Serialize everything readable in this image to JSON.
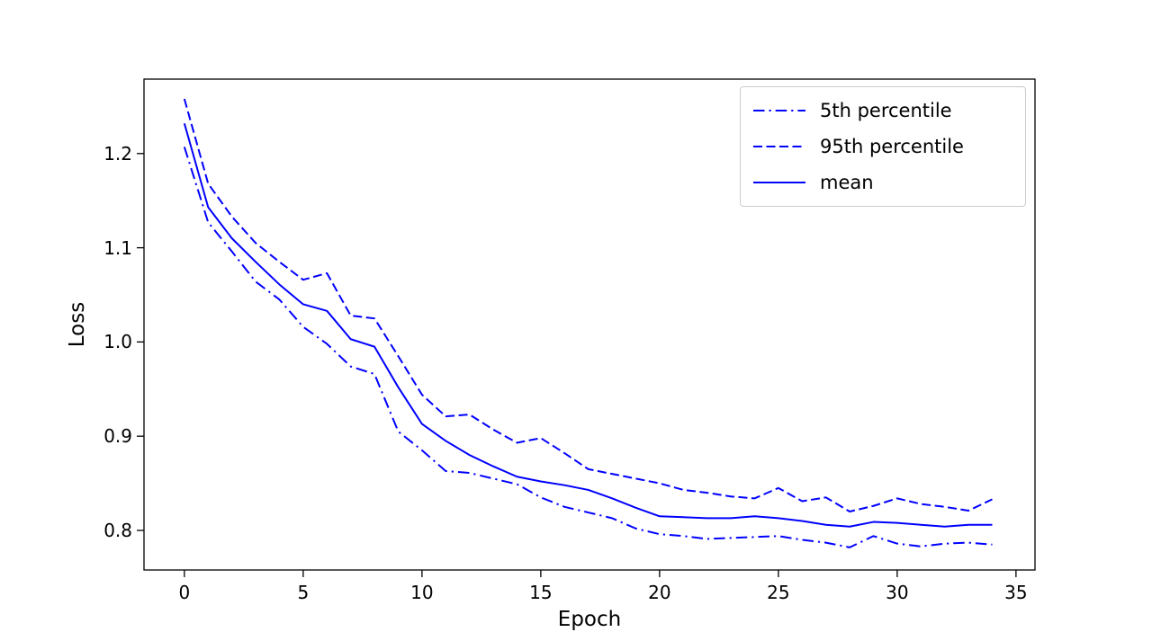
{
  "chart_data": {
    "type": "line",
    "title": "",
    "xlabel": "Epoch",
    "ylabel": "Loss",
    "grid": false,
    "legend_position": "upper right",
    "line_color": "#0000ff",
    "legend_border_color": "#cccccc",
    "xlim": [
      -1.7,
      35.8
    ],
    "ylim": [
      0.758,
      1.279
    ],
    "xtick_values": [
      0,
      5,
      10,
      15,
      20,
      25,
      30,
      35
    ],
    "xtick_labels": [
      "0",
      "5",
      "10",
      "15",
      "20",
      "25",
      "30",
      "35"
    ],
    "ytick_values": [
      0.8,
      0.9,
      1.0,
      1.1,
      1.2
    ],
    "ytick_labels": [
      "0.8",
      "0.9",
      "1.0",
      "1.1",
      "1.2"
    ],
    "x": [
      0,
      1,
      2,
      3,
      4,
      5,
      6,
      7,
      8,
      9,
      10,
      11,
      12,
      13,
      14,
      15,
      16,
      17,
      18,
      19,
      20,
      21,
      22,
      23,
      24,
      25,
      26,
      27,
      28,
      29,
      30,
      31,
      32,
      33,
      34
    ],
    "series": [
      {
        "name": "5th percentile",
        "style": "dashdot",
        "values": [
          1.207,
          1.127,
          1.096,
          1.064,
          1.045,
          1.016,
          0.998,
          0.974,
          0.966,
          0.905,
          0.885,
          0.863,
          0.861,
          0.855,
          0.849,
          0.835,
          0.825,
          0.819,
          0.813,
          0.802,
          0.796,
          0.794,
          0.791,
          0.792,
          0.793,
          0.794,
          0.79,
          0.787,
          0.782,
          0.794,
          0.786,
          0.783,
          0.786,
          0.787,
          0.785
        ]
      },
      {
        "name": "95th percentile",
        "style": "dashed",
        "values": [
          1.258,
          1.168,
          1.133,
          1.105,
          1.085,
          1.066,
          1.073,
          1.028,
          1.025,
          0.985,
          0.944,
          0.921,
          0.923,
          0.907,
          0.893,
          0.898,
          0.882,
          0.865,
          0.86,
          0.855,
          0.85,
          0.843,
          0.84,
          0.836,
          0.834,
          0.845,
          0.831,
          0.835,
          0.82,
          0.826,
          0.834,
          0.828,
          0.825,
          0.821,
          0.833
        ]
      },
      {
        "name": "mean",
        "style": "solid",
        "values": [
          1.232,
          1.143,
          1.11,
          1.085,
          1.061,
          1.04,
          1.033,
          1.003,
          0.995,
          0.952,
          0.913,
          0.895,
          0.88,
          0.868,
          0.857,
          0.852,
          0.848,
          0.843,
          0.834,
          0.824,
          0.815,
          0.814,
          0.813,
          0.813,
          0.815,
          0.813,
          0.81,
          0.806,
          0.804,
          0.809,
          0.808,
          0.806,
          0.804,
          0.806,
          0.806
        ]
      }
    ]
  }
}
